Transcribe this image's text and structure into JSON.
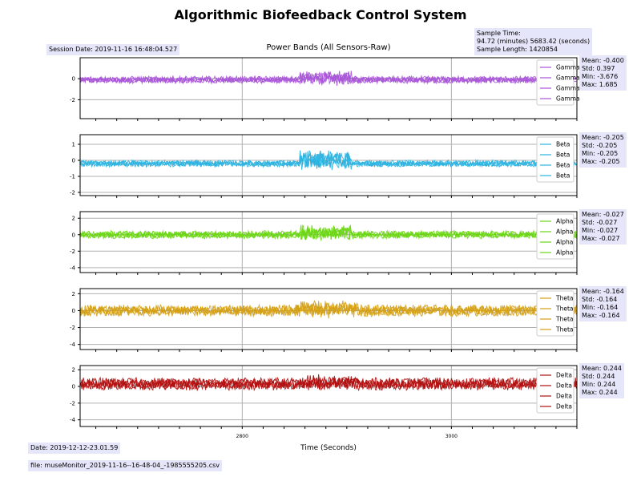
{
  "title": "Algorithmic Biofeedback Control System",
  "subtitle": "Power Bands (All Sensors-Raw)",
  "session_date": "Session Date: 2019-11-16 16:48:04.527",
  "sample_info": {
    "line1": "Sample Time:",
    "line2": "94.72 (minutes) 5683.42 (seconds)",
    "line3": "Sample Length: 1420854"
  },
  "footer_date": "Date: 2019-12-12-23.01.59",
  "footer_file": "file: museMonitor_2019-11-16--16-48-04_-1985555205.csv",
  "chart_data": {
    "type": "line",
    "xlabel": "Time (Seconds)",
    "xlim": [
      2645,
      3120
    ],
    "xticks": [
      2800,
      3000,
      3200,
      3400,
      3600
    ],
    "grid": true,
    "legend_position": "upper right",
    "panels": [
      {
        "band": "Gamma",
        "color": "#a855d8",
        "ylim": [
          -3.8,
          2.0
        ],
        "yticks": [
          0,
          -2
        ],
        "series": [
          {
            "name": "Gamma"
          },
          {
            "name": "Gamma"
          },
          {
            "name": "Gamma"
          },
          {
            "name": "Gamma"
          }
        ],
        "baseline": -0.1,
        "amplitude": 0.25,
        "burst": [
          2855,
          2905,
          0.9
        ],
        "stats": {
          "mean": "Mean: -0.400",
          "std": "Std: 0.397",
          "min": "Min: -3.676",
          "max": "Max: 1.685"
        }
      },
      {
        "band": "Beta",
        "color": "#2bb3e0",
        "ylim": [
          -2.2,
          1.6
        ],
        "yticks": [
          1,
          0,
          -1,
          -2
        ],
        "series": [
          {
            "name": "Beta"
          },
          {
            "name": "Beta"
          },
          {
            "name": "Beta"
          },
          {
            "name": "Beta"
          }
        ],
        "baseline": -0.2,
        "amplitude": 0.15,
        "burst": [
          2855,
          2905,
          1.0
        ],
        "stats": {
          "mean": "Mean: -0.205",
          "std": "Std: -0.205",
          "min": "Min: -0.205",
          "max": "Max: -0.205"
        }
      },
      {
        "band": "Alpha",
        "color": "#6bd614",
        "ylim": [
          -4.6,
          2.8
        ],
        "yticks": [
          2,
          0,
          -2,
          -4
        ],
        "series": [
          {
            "name": "Alpha"
          },
          {
            "name": "Alpha"
          },
          {
            "name": "Alpha"
          },
          {
            "name": "Alpha"
          }
        ],
        "baseline": 0.0,
        "amplitude": 0.35,
        "burst": [
          2855,
          2905,
          1.2
        ],
        "stats": {
          "mean": "Mean: -0.027",
          "std": "Std: -0.027",
          "min": "Min: -0.027",
          "max": "Max: -0.027"
        }
      },
      {
        "band": "Theta",
        "color": "#d4a015",
        "ylim": [
          -4.6,
          2.6
        ],
        "yticks": [
          2,
          0,
          -2,
          -4
        ],
        "series": [
          {
            "name": "Theta"
          },
          {
            "name": "Theta"
          },
          {
            "name": "Theta"
          },
          {
            "name": "Theta"
          }
        ],
        "baseline": 0.0,
        "amplitude": 0.5,
        "burst": [
          2850,
          2910,
          1.0
        ],
        "stats": {
          "mean": "Mean: -0.164",
          "std": "Std: -0.164",
          "min": "Min: -0.164",
          "max": "Max: -0.164"
        }
      },
      {
        "band": "Delta",
        "color": "#b20d0d",
        "ylim": [
          -4.8,
          2.5
        ],
        "yticks": [
          2,
          0,
          -2,
          -4
        ],
        "series": [
          {
            "name": "Delta"
          },
          {
            "name": "Delta"
          },
          {
            "name": "Delta"
          },
          {
            "name": "Delta"
          }
        ],
        "baseline": 0.3,
        "amplitude": 0.55,
        "burst": [
          2860,
          2910,
          0.7
        ],
        "stats": {
          "mean": "Mean: 0.244",
          "std": "Std: 0.244",
          "min": "Min: 0.244",
          "max": "Max: 0.244"
        }
      }
    ]
  }
}
